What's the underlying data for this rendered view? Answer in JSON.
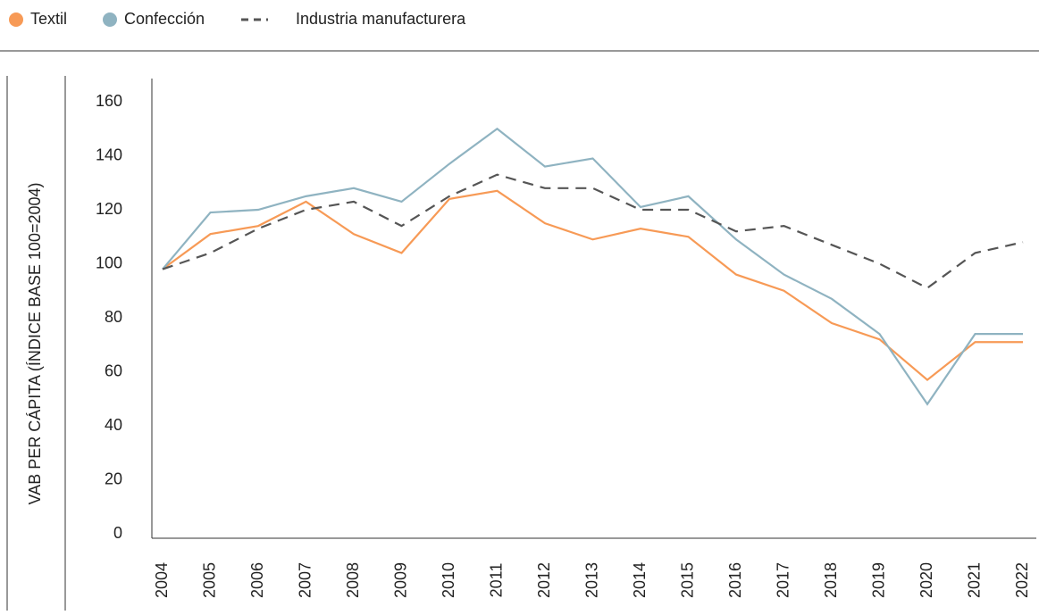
{
  "chart_data": {
    "type": "line",
    "y_label": "VAB PER CÁPITA (ÍNDICE BASE 100=2004)",
    "categories": [
      "2004",
      "2005",
      "2006",
      "2007",
      "2008",
      "2009",
      "2010",
      "2011",
      "2012",
      "2013",
      "2014",
      "2015",
      "2016",
      "2017",
      "2018",
      "2019",
      "2020",
      "2021",
      "2022"
    ],
    "series": [
      {
        "name": "Textil",
        "color": "#f79a56",
        "dash": false,
        "values": [
          98,
          111,
          114,
          123,
          111,
          104,
          124,
          127,
          115,
          109,
          113,
          110,
          96,
          90,
          78,
          72,
          57,
          71,
          71
        ]
      },
      {
        "name": "Confección",
        "color": "#8fb3c1",
        "dash": false,
        "values": [
          98,
          119,
          120,
          125,
          128,
          123,
          137,
          150,
          136,
          139,
          121,
          125,
          109,
          96,
          87,
          74,
          48,
          74,
          74
        ]
      },
      {
        "name": "Industria manufacturera",
        "color": "#555555",
        "dash": true,
        "values": [
          98,
          104,
          113,
          120,
          123,
          114,
          125,
          133,
          128,
          128,
          120,
          120,
          112,
          114,
          107,
          100,
          91,
          104,
          108
        ]
      }
    ],
    "ylim": [
      0,
      170
    ],
    "yticks": [
      0,
      20,
      40,
      60,
      80,
      100,
      120,
      140,
      160
    ],
    "grid": false
  }
}
